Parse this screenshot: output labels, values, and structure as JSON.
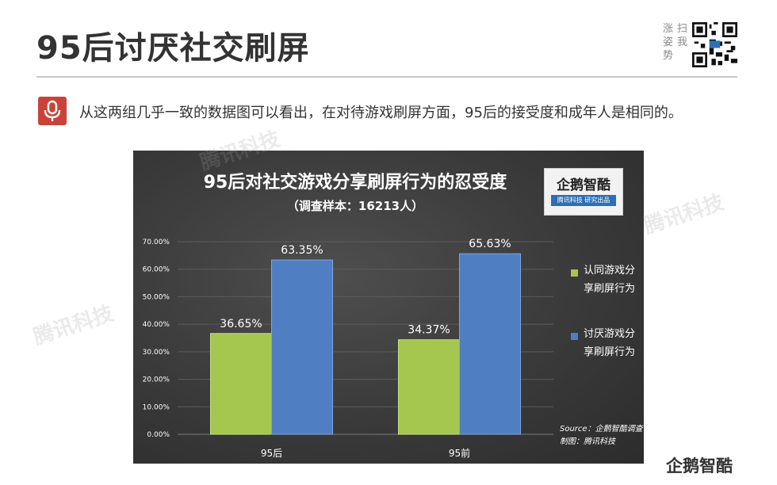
{
  "header": {
    "title": "95后讨厌社交刷屏",
    "qr_label_left": "涨姿势",
    "qr_label_right": "扫我"
  },
  "intro": {
    "text": "从这两组几乎一致的数据图可以看出，在对待游戏刷屏方面，95后的接受度和成年人是相同的。"
  },
  "colors": {
    "accept": "#a5c64f",
    "dislike": "#4f7fc2",
    "mic": "#c9433a"
  },
  "logo": {
    "name": "企鹅智酷",
    "tagline": "腾讯科技  研究出品"
  },
  "watermark": "腾讯科技",
  "source": {
    "line1": "Source：企鹅智酷调查",
    "line2": "制图：腾讯科技"
  },
  "chart_data": {
    "type": "bar",
    "title": "95后对社交游戏分享刷屏行为的忍受度",
    "subtitle": "（调查样本：16213人）",
    "categories": [
      "95后",
      "95前"
    ],
    "series": [
      {
        "name": "认同游戏分享刷屏行为",
        "values": [
          36.65,
          34.37
        ],
        "labels": [
          "36.65%",
          "34.37%"
        ]
      },
      {
        "name": "讨厌游戏分享刷屏行为",
        "values": [
          63.35,
          65.63
        ],
        "labels": [
          "63.35%",
          "65.63%"
        ]
      }
    ],
    "ylim": [
      0,
      70
    ],
    "yticks": [
      "0.00%",
      "10.00%",
      "20.00%",
      "30.00%",
      "40.00%",
      "50.00%",
      "60.00%",
      "70.00%"
    ],
    "grid": true,
    "legend_position": "right"
  }
}
